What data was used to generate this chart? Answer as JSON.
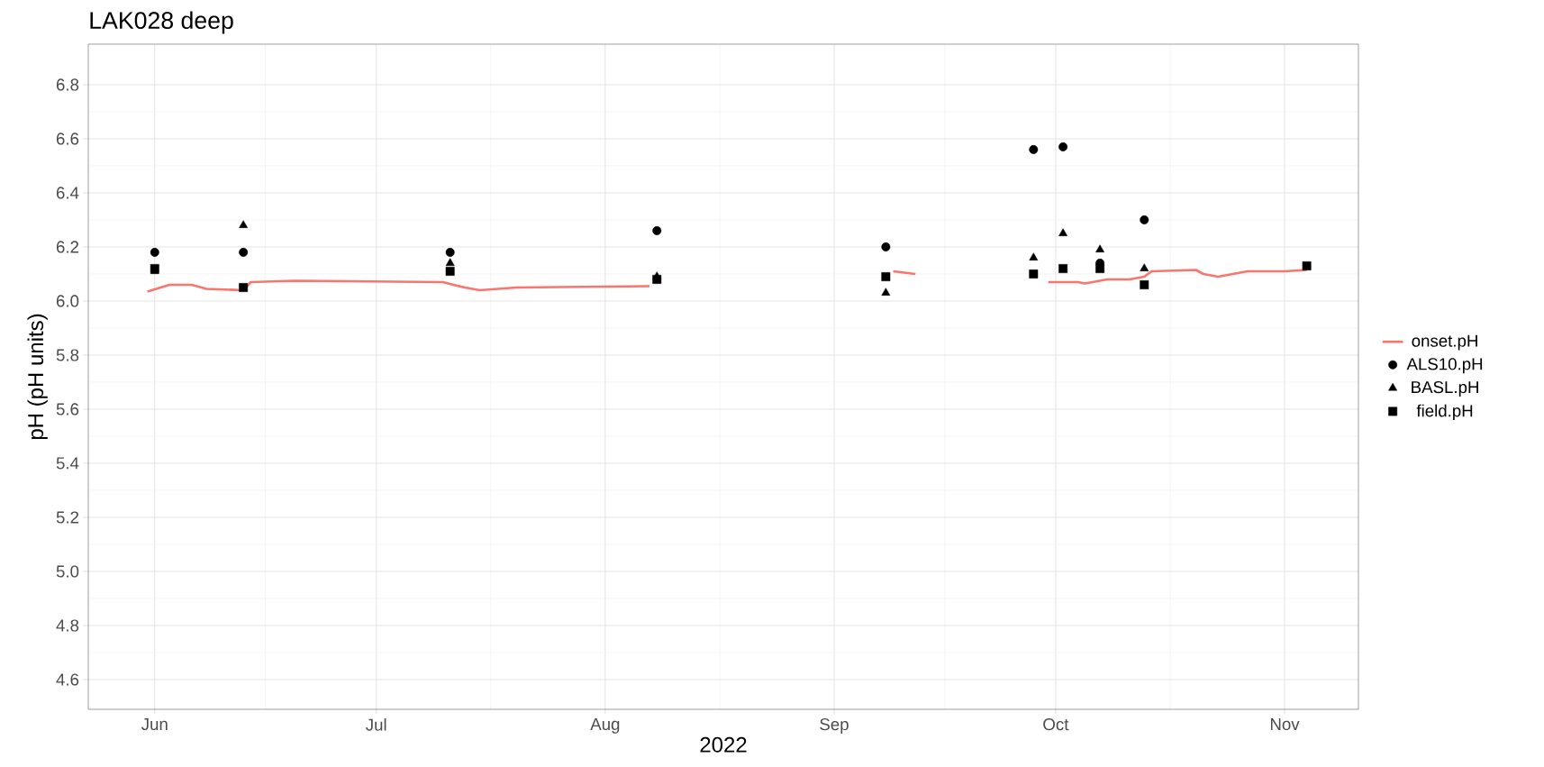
{
  "chart_data": {
    "type": "scatter",
    "title": "LAK028 deep",
    "xlabel": "2022",
    "ylabel": "pH (pH units)",
    "xlim": [
      "2022-05-23",
      "2022-11-11"
    ],
    "xticks": [
      {
        "value": "2022-06-01",
        "label": "Jun"
      },
      {
        "value": "2022-07-01",
        "label": "Jul"
      },
      {
        "value": "2022-08-01",
        "label": "Aug"
      },
      {
        "value": "2022-09-01",
        "label": "Sep"
      },
      {
        "value": "2022-10-01",
        "label": "Oct"
      },
      {
        "value": "2022-11-01",
        "label": "Nov"
      }
    ],
    "ylim": [
      4.49,
      6.95
    ],
    "yticks": [
      {
        "value": 4.6,
        "label": "4.6"
      },
      {
        "value": 4.8,
        "label": "4.8"
      },
      {
        "value": 5.0,
        "label": "5.0"
      },
      {
        "value": 5.2,
        "label": "5.2"
      },
      {
        "value": 5.4,
        "label": "5.4"
      },
      {
        "value": 5.6,
        "label": "5.6"
      },
      {
        "value": 5.8,
        "label": "5.8"
      },
      {
        "value": 6.0,
        "label": "6.0"
      },
      {
        "value": 6.2,
        "label": "6.2"
      },
      {
        "value": 6.4,
        "label": "6.4"
      },
      {
        "value": 6.6,
        "label": "6.6"
      },
      {
        "value": 6.8,
        "label": "6.8"
      }
    ],
    "grid": true,
    "legend": "right",
    "series": [
      {
        "name": "onset.pH",
        "type": "line",
        "color": "#f8766d",
        "marker": "none",
        "x": [
          "2022-05-31",
          "2022-06-03",
          "2022-06-06",
          "2022-06-08",
          "2022-06-13",
          "2022-06-14",
          "2022-06-20",
          "2022-07-10",
          "2022-07-13",
          "2022-07-15",
          "2022-07-20",
          "2022-08-07",
          "2022-08-20",
          "2022-09-09",
          "2022-09-12",
          "2022-09-20",
          "2022-09-30",
          "2022-10-04",
          "2022-10-05",
          "2022-10-08",
          "2022-10-11",
          "2022-10-13",
          "2022-10-14",
          "2022-10-20",
          "2022-10-21",
          "2022-10-23",
          "2022-10-25",
          "2022-10-27",
          "2022-11-01",
          "2022-11-04"
        ],
        "values": [
          6.035,
          6.06,
          6.06,
          6.045,
          6.04,
          6.07,
          6.075,
          6.07,
          6.05,
          6.04,
          6.05,
          6.055,
          null,
          6.11,
          6.1,
          null,
          6.07,
          6.07,
          6.065,
          6.08,
          6.08,
          6.09,
          6.11,
          6.115,
          6.1,
          6.09,
          6.1,
          6.11,
          6.11,
          6.115
        ]
      },
      {
        "name": "ALS10.pH",
        "color": "#000000",
        "marker": "circle",
        "x": [
          "2022-06-01",
          "2022-06-13",
          "2022-07-11",
          "2022-08-08",
          "2022-09-08",
          "2022-09-28",
          "2022-10-02",
          "2022-10-07",
          "2022-10-13"
        ],
        "values": [
          6.18,
          6.18,
          6.18,
          6.26,
          6.2,
          6.56,
          6.57,
          6.14,
          6.3
        ]
      },
      {
        "name": "BASL.pH",
        "color": "#000000",
        "marker": "triangle",
        "x": [
          "2022-06-01",
          "2022-06-13",
          "2022-07-11",
          "2022-08-08",
          "2022-09-08",
          "2022-09-28",
          "2022-10-02",
          "2022-10-07",
          "2022-10-13"
        ],
        "values": [
          6.11,
          6.28,
          6.14,
          6.09,
          6.03,
          6.16,
          6.25,
          6.19,
          6.12
        ]
      },
      {
        "name": "field.pH",
        "color": "#000000",
        "marker": "square",
        "x": [
          "2022-06-01",
          "2022-06-13",
          "2022-07-11",
          "2022-08-08",
          "2022-09-08",
          "2022-09-28",
          "2022-10-02",
          "2022-10-07",
          "2022-10-13",
          "2022-11-04"
        ],
        "values": [
          6.12,
          6.05,
          6.11,
          6.08,
          6.09,
          6.1,
          6.12,
          6.12,
          6.06,
          6.13
        ]
      }
    ]
  }
}
